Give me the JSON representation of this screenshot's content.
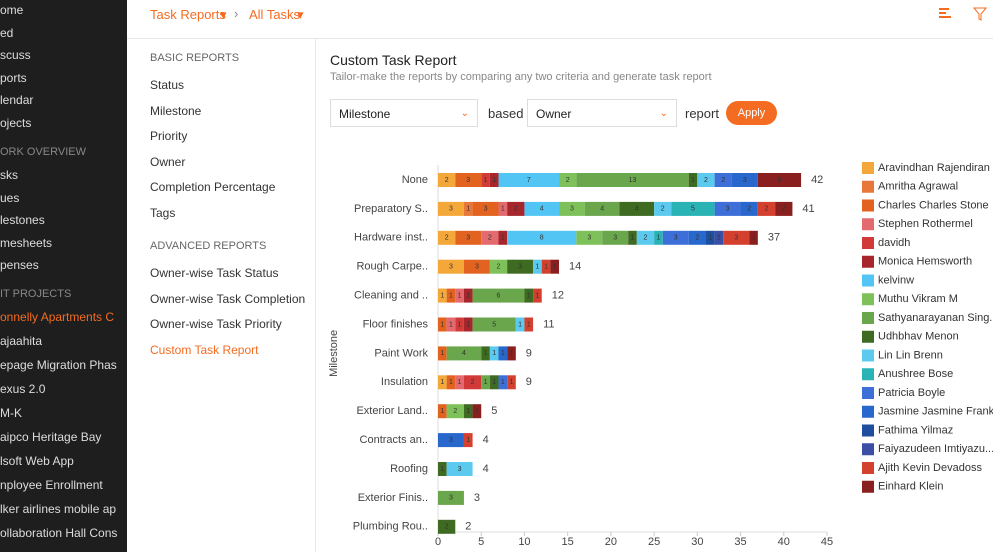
{
  "topbar": {
    "crumb1": "Task Reports",
    "crumb2": "All Tasks"
  },
  "sidebar": {
    "items": [
      "ome",
      "ed",
      "scuss",
      "ports",
      "lendar",
      "ojects"
    ],
    "section_work": "ORK OVERVIEW",
    "work_items": [
      "sks",
      "ues",
      "lestones",
      "mesheets",
      "penses"
    ],
    "section_projects": "IT PROJECTS",
    "projects": [
      "onnelly Apartments C",
      "ajaahita",
      "epage Migration Phas",
      "exus 2.0",
      "M-K",
      "aipco Heritage Bay",
      "lsoft Web App",
      "nployee Enrollment",
      "lker airlines mobile ap",
      "ollaboration Hall Cons"
    ]
  },
  "reports": {
    "basic_title": "BASIC REPORTS",
    "basic": [
      "Status",
      "Milestone",
      "Priority",
      "Owner",
      "Completion Percentage",
      "Tags"
    ],
    "advanced_title": "ADVANCED REPORTS",
    "advanced": [
      "Owner-wise Task Status",
      "Owner-wise Task Completion",
      "Owner-wise Task Priority",
      "Custom Task Report"
    ]
  },
  "main": {
    "title": "Custom Task Report",
    "subtitle": "Tailor-make the reports by comparing any two criteria and generate task report",
    "select1": "Milestone",
    "word1": "based",
    "select2": "Owner",
    "word2": "report",
    "button": "Apply"
  },
  "chart_data": {
    "type": "stacked_barh",
    "ylabel": "Milestone",
    "categories": [
      "None",
      "Preparatory S..",
      "Hardware inst..",
      "Rough Carpe..",
      "Cleaning and ..",
      "Floor finishes",
      "Paint Work",
      "Insulation",
      "Exterior Land..",
      "Contracts an..",
      "Roofing",
      "Exterior Finis..",
      "Plumbing Rou.."
    ],
    "totals": [
      42,
      41,
      37,
      14,
      12,
      11,
      9,
      9,
      5,
      4,
      4,
      3,
      2
    ],
    "xlim": [
      0,
      45
    ],
    "xticks": [
      0,
      5,
      10,
      15,
      20,
      25,
      30,
      35,
      40,
      45
    ],
    "series": [
      {
        "name": "Aravindhan Rajendiran",
        "color": "#f5a83a",
        "values": [
          2,
          3,
          2,
          3,
          1,
          0,
          0,
          1,
          0,
          0,
          0,
          0,
          0
        ]
      },
      {
        "name": "Amritha Agrawal",
        "color": "#e8773a",
        "values": [
          0,
          1,
          0,
          0,
          0,
          0,
          0,
          0,
          0,
          0,
          0,
          0,
          0
        ]
      },
      {
        "name": "Charles Charles Stone",
        "color": "#e2621f",
        "values": [
          3,
          3,
          3,
          3,
          1,
          1,
          1,
          1,
          1,
          0,
          0,
          0,
          0
        ]
      },
      {
        "name": "Stephen Rothermel",
        "color": "#e36a6e",
        "values": [
          0,
          1,
          2,
          0,
          1,
          1,
          0,
          1,
          0,
          0,
          0,
          0,
          0
        ]
      },
      {
        "name": "davidh",
        "color": "#d23a3a",
        "values": [
          1,
          0,
          0,
          0,
          0,
          1,
          0,
          2,
          0,
          0,
          0,
          0,
          0
        ]
      },
      {
        "name": "Monica Hemsworth",
        "color": "#a6262c",
        "values": [
          1,
          2,
          1,
          0,
          1,
          1,
          0,
          0,
          0,
          0,
          0,
          0,
          0
        ]
      },
      {
        "name": "kelvinw",
        "color": "#53c5f5",
        "values": [
          7,
          4,
          8,
          0,
          0,
          0,
          0,
          0,
          0,
          0,
          0,
          0,
          0
        ]
      },
      {
        "name": "Muthu Vikram M",
        "color": "#7ec15a",
        "values": [
          2,
          3,
          3,
          2,
          0,
          0,
          0,
          0,
          2,
          0,
          0,
          0,
          0
        ]
      },
      {
        "name": "Sathyanarayanan Sing...",
        "color": "#6aa64c",
        "values": [
          13,
          4,
          3,
          0,
          6,
          5,
          4,
          1,
          0,
          0,
          0,
          3,
          0
        ]
      },
      {
        "name": "Udhbhav Menon",
        "color": "#3e6a22",
        "values": [
          1,
          4,
          1,
          3,
          1,
          0,
          1,
          1,
          1,
          0,
          1,
          0,
          2
        ]
      },
      {
        "name": "Lin Lin Brenn",
        "color": "#5cc9ef",
        "values": [
          2,
          2,
          2,
          1,
          0,
          1,
          1,
          0,
          0,
          0,
          3,
          0,
          0
        ]
      },
      {
        "name": "Anushree Bose",
        "color": "#2ab3b5",
        "values": [
          0,
          5,
          1,
          0,
          0,
          0,
          0,
          0,
          0,
          0,
          0,
          0,
          0
        ]
      },
      {
        "name": "Patricia Boyle",
        "color": "#3e6fd8",
        "values": [
          2,
          3,
          3,
          0,
          0,
          0,
          0,
          1,
          0,
          0,
          0,
          0,
          0
        ]
      },
      {
        "name": "Jasmine Jasmine Frank",
        "color": "#2867cc",
        "values": [
          3,
          2,
          2,
          0,
          0,
          0,
          1,
          0,
          0,
          3,
          0,
          0,
          0
        ]
      },
      {
        "name": "Fathima Yilmaz",
        "color": "#1f4e9e",
        "values": [
          0,
          0,
          1,
          0,
          0,
          0,
          0,
          0,
          0,
          0,
          0,
          0,
          0
        ]
      },
      {
        "name": "Faiyazudeen Imtiyazu...",
        "color": "#3a4ea6",
        "values": [
          0,
          0,
          1,
          0,
          0,
          0,
          0,
          0,
          0,
          0,
          0,
          0,
          0
        ]
      },
      {
        "name": "Ajith Kevin Devadoss",
        "color": "#d4402e",
        "values": [
          0,
          2,
          3,
          1,
          1,
          1,
          0,
          1,
          0,
          1,
          0,
          0,
          0
        ]
      },
      {
        "name": "Einhard Klein",
        "color": "#8a1f1f",
        "values": [
          5,
          2,
          1,
          1,
          0,
          0,
          1,
          0,
          1,
          0,
          0,
          0,
          0
        ]
      }
    ]
  }
}
